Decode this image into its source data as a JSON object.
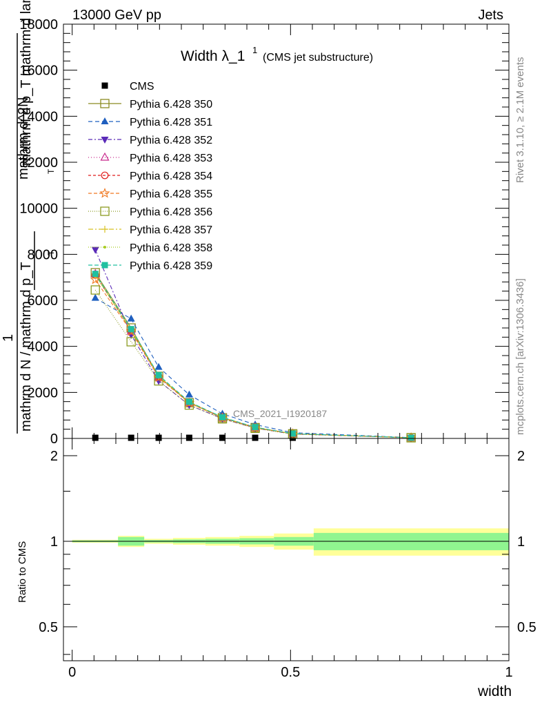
{
  "header": {
    "left": "13000 GeV pp",
    "right": "Jets"
  },
  "title": {
    "main": "Width λ_1",
    "superscript": "1",
    "sub": "(CMS jet substructure)"
  },
  "side_labels": {
    "rivet": "Rivet 3.1.10, ≥ 2.1M events",
    "mcplots": "mcplots.cern.ch [arXiv:1306.3436]"
  },
  "analysis_label": "CMS_2021_I1920187",
  "main_ylabel": {
    "numerator": "1",
    "denominator": "mathrm d N / mathrm d p_T",
    "top_line": "mathrm d^2N",
    "top_line2": "mathrm d p_T mathrm d lambda",
    "sub_T": "T"
  },
  "ratio_ylabel": "Ratio to CMS",
  "xlabel": "width",
  "colors": {
    "band_inner": "#90f590",
    "band_outer": "#ffff99",
    "cms": "#000000"
  },
  "chart_data": [
    {
      "type": "line",
      "panel": "main",
      "x": [
        0.053,
        0.135,
        0.198,
        0.268,
        0.344,
        0.419,
        0.505,
        0.776
      ],
      "xlim": [
        -0.02,
        1.0
      ],
      "ylim": [
        0,
        18000
      ],
      "yticks": [
        0,
        2000,
        4000,
        6000,
        8000,
        10000,
        12000,
        14000,
        16000,
        18000
      ],
      "ytick_labels": [
        "0",
        "2000",
        "4000",
        "6000",
        "8000",
        "10000",
        "12000",
        "14000",
        "16000",
        "18000"
      ],
      "xticks": [
        0,
        0.5,
        1
      ],
      "legend_placement": "top-left",
      "series": [
        {
          "name": "CMS",
          "color": "#000000",
          "marker": "square-filled",
          "dash": "none",
          "values": [
            28,
            28,
            28,
            28,
            28,
            28,
            28,
            28
          ]
        },
        {
          "name": "Pythia 6.428 350",
          "color": "#8b8b22",
          "marker": "square-open",
          "dash": "solid",
          "values": [
            7200,
            4800,
            2700,
            1550,
            900,
            470,
            200,
            30
          ]
        },
        {
          "name": "Pythia 6.428 351",
          "color": "#1f5fbf",
          "marker": "triangle-up-filled",
          "dash": "6,4",
          "values": [
            6100,
            5200,
            3100,
            1900,
            1070,
            600,
            250,
            35
          ]
        },
        {
          "name": "Pythia 6.428 352",
          "color": "#5a2ab8",
          "marker": "triangle-down-filled",
          "dash": "6,3,2,3",
          "values": [
            8200,
            4500,
            2500,
            1450,
            860,
            450,
            190,
            30
          ]
        },
        {
          "name": "Pythia 6.428 353",
          "color": "#c8288c",
          "marker": "triangle-up-open",
          "dash": "1,3",
          "values": [
            7150,
            4650,
            2650,
            1550,
            900,
            470,
            200,
            30
          ]
        },
        {
          "name": "Pythia 6.428 354",
          "color": "#e01a1a",
          "marker": "circle-open",
          "dash": "4,3",
          "values": [
            7100,
            4700,
            2700,
            1570,
            910,
            480,
            205,
            30
          ]
        },
        {
          "name": "Pythia 6.428 355",
          "color": "#f07820",
          "marker": "star-open",
          "dash": "5,3",
          "values": [
            6900,
            4650,
            2650,
            1540,
            890,
            460,
            200,
            30
          ]
        },
        {
          "name": "Pythia 6.428 356",
          "color": "#8b9a20",
          "marker": "square-open",
          "dash": "1,2",
          "values": [
            6450,
            4200,
            2500,
            1450,
            850,
            440,
            190,
            30
          ]
        },
        {
          "name": "Pythia 6.428 357",
          "color": "#d8c020",
          "marker": "cross",
          "dash": "7,3,2,3",
          "values": [
            7100,
            4700,
            2700,
            1570,
            910,
            480,
            205,
            30
          ]
        },
        {
          "name": "Pythia 6.428 358",
          "color": "#a8cc20",
          "marker": "dot",
          "dash": "1,2",
          "values": [
            7100,
            4700,
            2700,
            1570,
            910,
            480,
            205,
            30
          ]
        },
        {
          "name": "Pythia 6.428 359",
          "color": "#20c0a0",
          "marker": "square-filled",
          "dash": "6,3",
          "values": [
            7150,
            4750,
            2750,
            1590,
            920,
            490,
            210,
            30
          ]
        }
      ]
    },
    {
      "type": "area",
      "panel": "ratio",
      "x_edges": [
        0.0,
        0.105,
        0.165,
        0.231,
        0.305,
        0.383,
        0.462,
        0.553,
        1.0
      ],
      "band_inner_half": [
        0.007,
        0.035,
        0.01,
        0.015,
        0.02,
        0.025,
        0.035,
        0.07
      ],
      "band_outer_half": [
        0.012,
        0.045,
        0.02,
        0.028,
        0.035,
        0.045,
        0.065,
        0.11
      ],
      "ref_value": 1.0,
      "ylim": [
        0.38,
        2.3
      ],
      "log_scale": true,
      "ytick_labels": [
        "0.5",
        "1",
        "2"
      ],
      "yticks": [
        0.5,
        1,
        2
      ],
      "xlim": [
        -0.02,
        1.0
      ],
      "xticks": [
        0,
        0.5,
        1
      ],
      "xtick_labels": [
        "0",
        "0.5",
        "1"
      ]
    }
  ]
}
